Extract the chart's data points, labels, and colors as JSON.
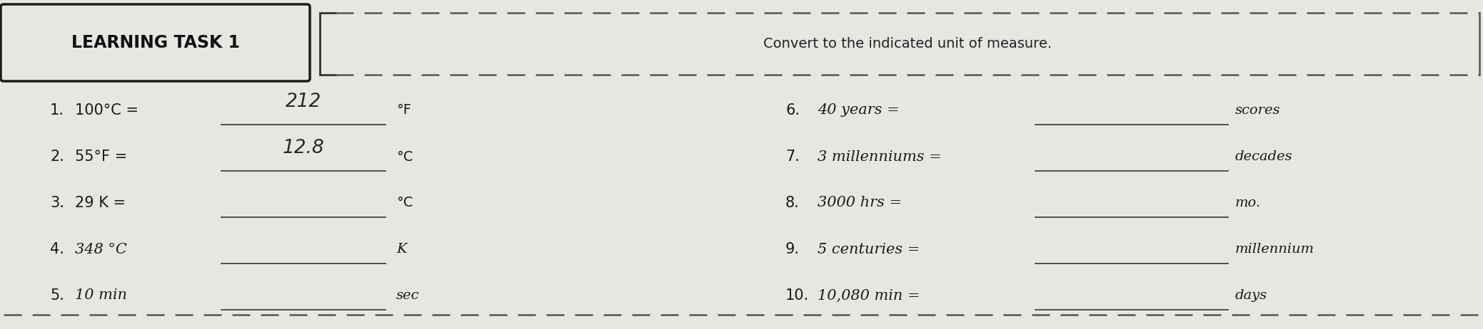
{
  "bg_color": "#e8e6e3",
  "title_box_text": "LEARNING TASK 1",
  "instruction_text": "Convert to the indicated unit of measure.",
  "left_items": [
    {
      "num": "1.",
      "text": "100°C =",
      "answer": "212",
      "unit": "°F",
      "has_answer": true,
      "italic_text": false,
      "italic_unit": false
    },
    {
      "num": "2.",
      "text": "55°F =",
      "answer": "12.8",
      "unit": "°C",
      "has_answer": true,
      "italic_text": false,
      "italic_unit": false
    },
    {
      "num": "3.",
      "text": "29 K =",
      "answer": "",
      "unit": "°C",
      "has_answer": false,
      "italic_text": false,
      "italic_unit": false
    },
    {
      "num": "4.",
      "text": "348 °C",
      "answer": "",
      "unit": "K",
      "has_answer": false,
      "italic_text": true,
      "italic_unit": true
    },
    {
      "num": "5.",
      "text": "10 min",
      "answer": "",
      "unit": "sec",
      "has_answer": false,
      "italic_text": true,
      "italic_unit": true
    }
  ],
  "right_items": [
    {
      "num": "6.",
      "text": "40 years =",
      "answer": "",
      "unit": "scores",
      "has_answer": false
    },
    {
      "num": "7.",
      "text": "3 millenniums =",
      "answer": "",
      "unit": "decades",
      "has_answer": false
    },
    {
      "num": "8.",
      "text": "3000 hrs =",
      "answer": "",
      "unit": "mo.",
      "has_answer": false
    },
    {
      "num": "9.",
      "text": "5 centuries =",
      "answer": "",
      "unit": "millennium",
      "has_answer": false
    },
    {
      "num": "10.",
      "text": "10,080 min =",
      "answer": "",
      "unit": "days",
      "has_answer": false
    }
  ],
  "font_size_title": 17,
  "font_size_instruction": 14,
  "font_size_items": 15,
  "font_size_answer": 16,
  "font_size_unit": 14
}
